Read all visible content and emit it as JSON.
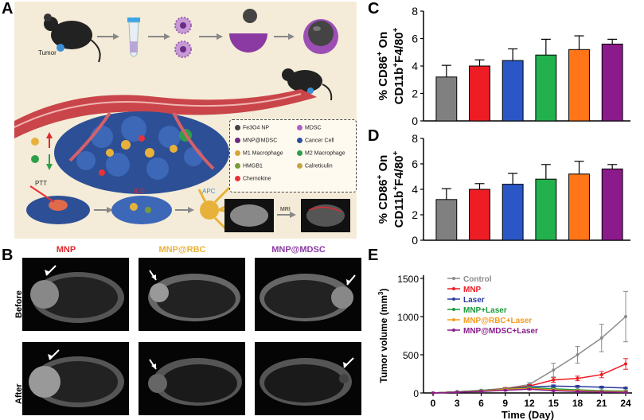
{
  "panels": {
    "a": "A",
    "b": "B",
    "c": "C",
    "d": "D",
    "e": "E"
  },
  "schematic": {
    "tumor_label": "Tumor",
    "legend": [
      {
        "text": "Fe3O4 NP",
        "color": "#444444"
      },
      {
        "text": "MDSC",
        "color": "#b15fc1"
      },
      {
        "text": "MNP@MDSC",
        "color": "#6a2c82"
      },
      {
        "text": "Cancer Cell",
        "color": "#2b4f9e"
      },
      {
        "text": "M1 Macrophage",
        "color": "#d8a33a"
      },
      {
        "text": "M2 Macrophage",
        "color": "#2f9e4a"
      },
      {
        "text": "HMGB1",
        "color": "#7a9b3a"
      },
      {
        "text": "Calreticulin",
        "color": "#c6a24a"
      },
      {
        "text": "Chemokine",
        "color": "#e8323a"
      }
    ],
    "ptt_label": "PTT",
    "icd_label": "ICD",
    "apc_label": "APC",
    "mri_label": "MRI"
  },
  "mri": {
    "columns": [
      {
        "label": "MNP",
        "color": "#e0282f"
      },
      {
        "label": "MNP@RBC",
        "color": "#e8b23a"
      },
      {
        "label": "MNP@MDSC",
        "color": "#8a3aa3"
      }
    ],
    "rows": [
      "Before",
      "After"
    ]
  },
  "chart_data": [
    {
      "type": "bar",
      "panel": "C",
      "ylabel_line1": "% CD86",
      "ylabel_sup1": "+",
      "ylabel_on": " On",
      "ylabel_line2": "CD11b",
      "ylabel_sup2": "+",
      "ylabel_line2b": "F4/80",
      "ylabel_sup3": "+",
      "ylim": [
        0,
        8
      ],
      "yticks": [
        "0",
        "2",
        "4",
        "6",
        "8"
      ],
      "values": [
        3.2,
        4.0,
        4.4,
        4.8,
        5.2,
        5.6
      ],
      "errors": [
        0.85,
        0.45,
        0.85,
        1.15,
        1.0,
        0.35
      ],
      "colors": [
        "#808080",
        "#ee1c24",
        "#2a56c6",
        "#22b14c",
        "#ff7518",
        "#8b1a8b"
      ]
    },
    {
      "type": "bar",
      "panel": "D",
      "ylabel_line1": "% CD86",
      "ylabel_sup1": "+",
      "ylabel_on": " On",
      "ylabel_line2": "CD11b",
      "ylabel_sup2": "+",
      "ylabel_line2b": "F4/80",
      "ylabel_sup3": "+",
      "ylim": [
        0,
        8
      ],
      "yticks": [
        "0",
        "2",
        "4",
        "6",
        "8"
      ],
      "values": [
        3.2,
        4.0,
        4.4,
        4.8,
        5.2,
        5.6
      ],
      "errors": [
        0.85,
        0.45,
        0.85,
        1.15,
        1.0,
        0.35
      ],
      "colors": [
        "#808080",
        "#ee1c24",
        "#2a56c6",
        "#22b14c",
        "#ff7518",
        "#8b1a8b"
      ]
    },
    {
      "type": "line",
      "panel": "E",
      "xlabel": "Time (Day)",
      "ylabel": "Tumor volume (mm",
      "ylabel_sup": "3",
      "ylabel_end": ")",
      "xlim": [
        0,
        24
      ],
      "ylim": [
        0,
        1500
      ],
      "xticks": [
        "0",
        "3",
        "6",
        "9",
        "12",
        "15",
        "18",
        "21",
        "24"
      ],
      "yticks": [
        "0",
        "500",
        "1000",
        "1500"
      ],
      "x": [
        0,
        3,
        6,
        9,
        12,
        15,
        18,
        21,
        24
      ],
      "series": [
        {
          "name": "Control",
          "color": "#8c8c8c",
          "values": [
            0,
            15,
            35,
            60,
            110,
            300,
            500,
            720,
            1000
          ],
          "errors": [
            0,
            5,
            8,
            12,
            25,
            90,
            110,
            180,
            330
          ]
        },
        {
          "name": "MNP",
          "color": "#ee1c24",
          "values": [
            0,
            15,
            30,
            55,
            90,
            170,
            190,
            240,
            380
          ],
          "errors": [
            0,
            4,
            6,
            10,
            20,
            30,
            30,
            40,
            70
          ]
        },
        {
          "name": "Laser",
          "color": "#2a3a9e",
          "values": [
            0,
            15,
            30,
            50,
            80,
            90,
            85,
            75,
            65
          ],
          "errors": [
            0,
            4,
            6,
            8,
            15,
            15,
            12,
            12,
            10
          ]
        },
        {
          "name": "MNP+Laser",
          "color": "#1a9a3a",
          "values": [
            0,
            15,
            30,
            50,
            70,
            55,
            40,
            30,
            25
          ],
          "errors": [
            0,
            3,
            5,
            8,
            12,
            10,
            8,
            6,
            5
          ]
        },
        {
          "name": "MNP@RBC+Laser",
          "color": "#f39b1e",
          "values": [
            0,
            12,
            25,
            45,
            60,
            40,
            30,
            20,
            15
          ],
          "errors": [
            0,
            3,
            5,
            7,
            10,
            8,
            6,
            5,
            4
          ]
        },
        {
          "name": "MNP@MDSC+Laser",
          "color": "#8b1a8b",
          "values": [
            0,
            10,
            20,
            35,
            50,
            30,
            20,
            12,
            8
          ],
          "errors": [
            0,
            3,
            4,
            6,
            8,
            6,
            5,
            3,
            2
          ]
        }
      ]
    }
  ]
}
